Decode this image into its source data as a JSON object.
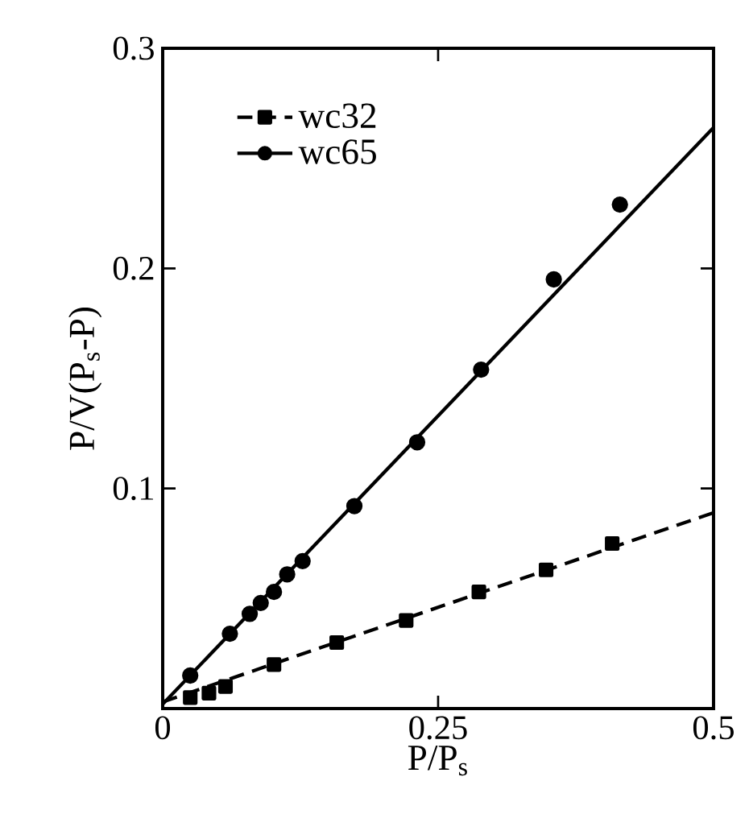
{
  "chart_data": {
    "type": "scatter",
    "xlabel": "P/P$_{s}$",
    "ylabel": "P/V(P$_{s}$-P)",
    "xlim": [
      0,
      0.5
    ],
    "ylim": [
      0,
      0.3
    ],
    "xticks": [
      0,
      0.25,
      0.5
    ],
    "yticks": [
      {
        "value": 0,
        "label": null
      },
      0.1,
      0.2,
      0.3
    ],
    "legend": "top left",
    "grid": false,
    "series": [
      {
        "name": "wc32",
        "marker": "square",
        "line_style": "dashed",
        "color": "#000000",
        "x": [
          0.025,
          0.042,
          0.057,
          0.101,
          0.158,
          0.221,
          0.287,
          0.348,
          0.408
        ],
        "values": [
          0.005,
          0.007,
          0.01,
          0.02,
          0.03,
          0.04,
          0.053,
          0.063,
          0.075
        ]
      },
      {
        "name": "wc65",
        "marker": "circle",
        "line_style": "solid",
        "color": "#000000",
        "x": [
          0.025,
          0.061,
          0.079,
          0.089,
          0.101,
          0.113,
          0.127,
          0.174,
          0.231,
          0.289,
          0.355,
          0.415
        ],
        "values": [
          0.015,
          0.034,
          0.043,
          0.048,
          0.053,
          0.061,
          0.067,
          0.092,
          0.121,
          0.154,
          0.195,
          0.229
        ]
      },
      {
        "type": "line",
        "line_style": "dashed",
        "marker": "none",
        "color": "#000000",
        "x": [
          0,
          0.5
        ],
        "values": [
          0.003,
          0.089
        ]
      },
      {
        "type": "line",
        "line_style": "solid",
        "marker": "none",
        "color": "#000000",
        "x": [
          0,
          0.5
        ],
        "values": [
          0.002,
          0.264
        ]
      }
    ]
  }
}
